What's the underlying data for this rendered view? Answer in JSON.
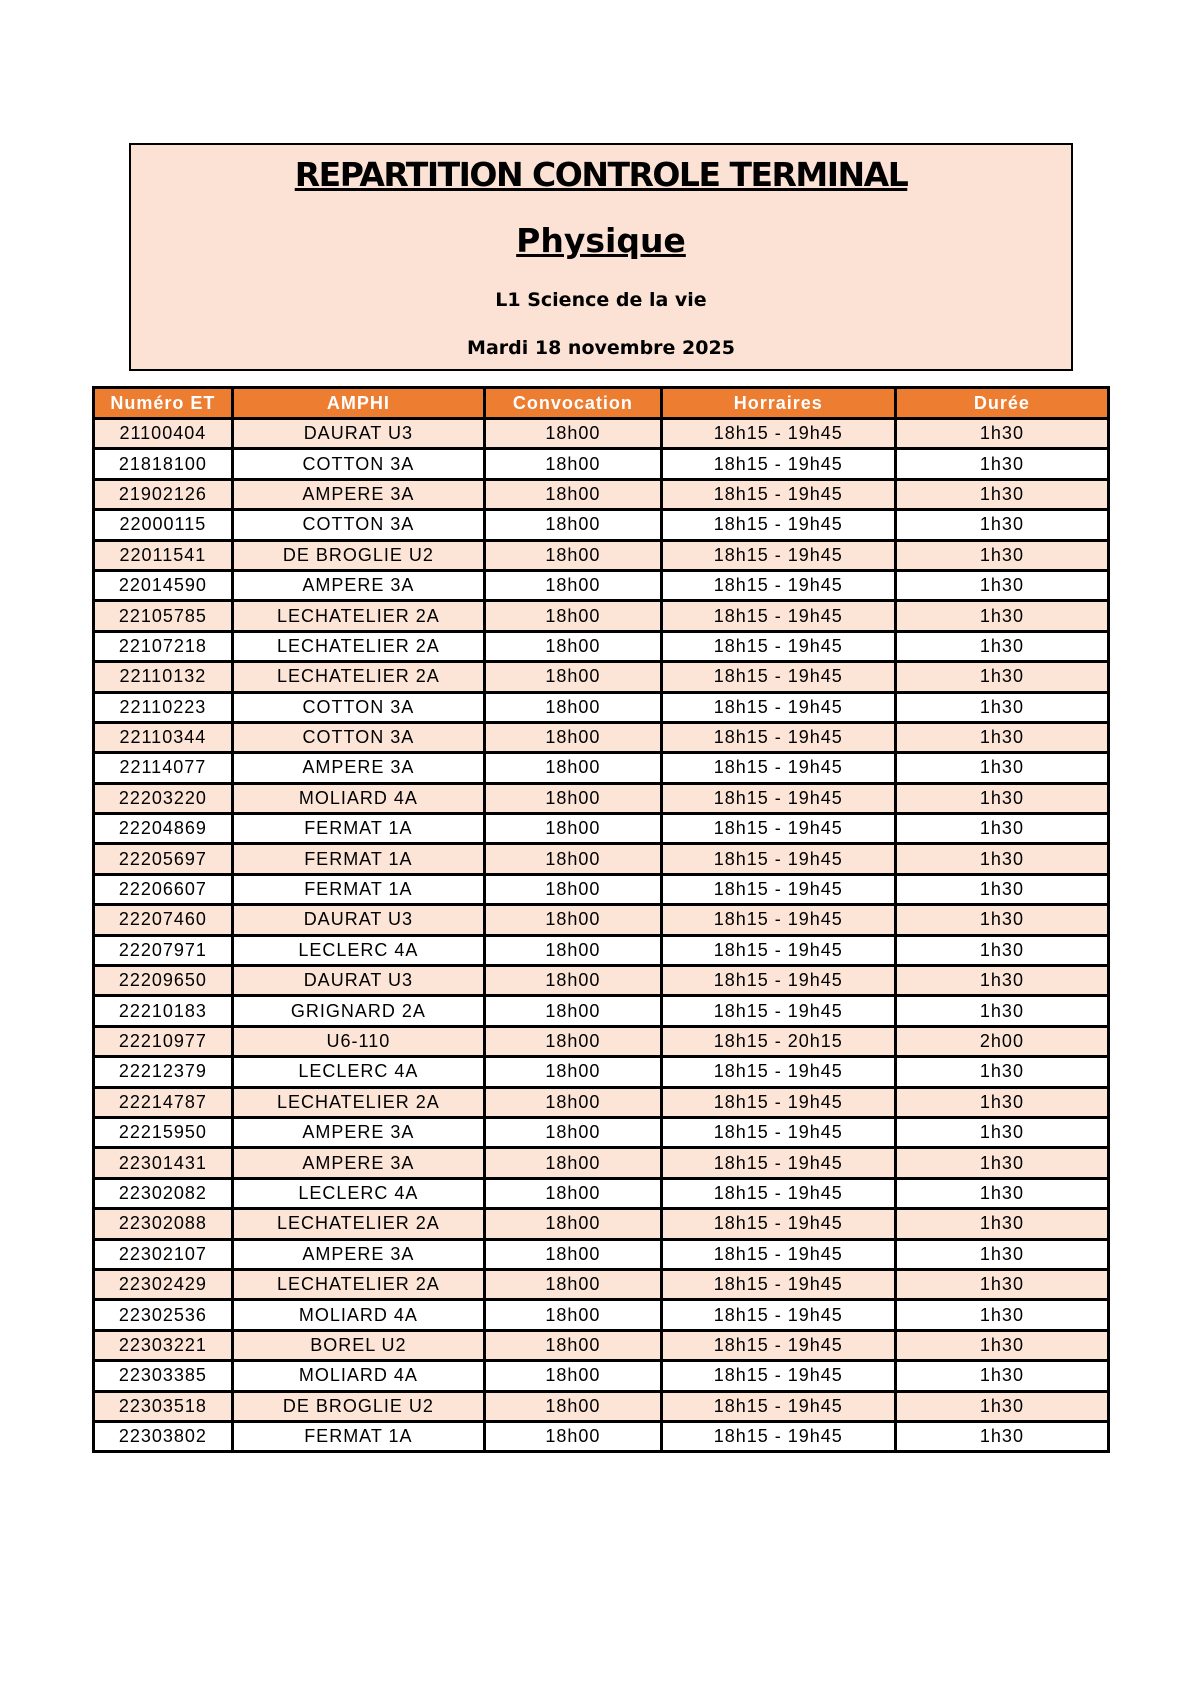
{
  "header": {
    "title": "REPARTITION CONTROLE TERMINAL",
    "subject": "Physique",
    "program": "L1 Science de la vie",
    "date": "Mardi 18 novembre 2025"
  },
  "colors": {
    "header_bg": "#ed7d31",
    "stripe": "#fce4d6",
    "title_box": "#fbe2d5"
  },
  "table": {
    "columns": [
      "Numéro ET",
      "AMPHI",
      "Convocation",
      "Horraires",
      "Durée"
    ],
    "rows": [
      [
        "21100404",
        "DAURAT U3",
        "18h00",
        "18h15 - 19h45",
        "1h30"
      ],
      [
        "21818100",
        "COTTON 3A",
        "18h00",
        "18h15 - 19h45",
        "1h30"
      ],
      [
        "21902126",
        "AMPERE 3A",
        "18h00",
        "18h15 - 19h45",
        "1h30"
      ],
      [
        "22000115",
        "COTTON 3A",
        "18h00",
        "18h15 - 19h45",
        "1h30"
      ],
      [
        "22011541",
        "DE BROGLIE U2",
        "18h00",
        "18h15 - 19h45",
        "1h30"
      ],
      [
        "22014590",
        "AMPERE 3A",
        "18h00",
        "18h15 - 19h45",
        "1h30"
      ],
      [
        "22105785",
        "LECHATELIER 2A",
        "18h00",
        "18h15 - 19h45",
        "1h30"
      ],
      [
        "22107218",
        "LECHATELIER 2A",
        "18h00",
        "18h15 - 19h45",
        "1h30"
      ],
      [
        "22110132",
        "LECHATELIER 2A",
        "18h00",
        "18h15 - 19h45",
        "1h30"
      ],
      [
        "22110223",
        "COTTON 3A",
        "18h00",
        "18h15 - 19h45",
        "1h30"
      ],
      [
        "22110344",
        "COTTON 3A",
        "18h00",
        "18h15 - 19h45",
        "1h30"
      ],
      [
        "22114077",
        "AMPERE 3A",
        "18h00",
        "18h15 - 19h45",
        "1h30"
      ],
      [
        "22203220",
        "MOLIARD 4A",
        "18h00",
        "18h15 - 19h45",
        "1h30"
      ],
      [
        "22204869",
        "FERMAT 1A",
        "18h00",
        "18h15 - 19h45",
        "1h30"
      ],
      [
        "22205697",
        "FERMAT 1A",
        "18h00",
        "18h15 - 19h45",
        "1h30"
      ],
      [
        "22206607",
        "FERMAT 1A",
        "18h00",
        "18h15 - 19h45",
        "1h30"
      ],
      [
        "22207460",
        "DAURAT U3",
        "18h00",
        "18h15 - 19h45",
        "1h30"
      ],
      [
        "22207971",
        "LECLERC 4A",
        "18h00",
        "18h15 - 19h45",
        "1h30"
      ],
      [
        "22209650",
        "DAURAT U3",
        "18h00",
        "18h15 - 19h45",
        "1h30"
      ],
      [
        "22210183",
        "GRIGNARD 2A",
        "18h00",
        "18h15 - 19h45",
        "1h30"
      ],
      [
        "22210977",
        "U6-110",
        "18h00",
        "18h15 - 20h15",
        "2h00"
      ],
      [
        "22212379",
        "LECLERC 4A",
        "18h00",
        "18h15 - 19h45",
        "1h30"
      ],
      [
        "22214787",
        "LECHATELIER 2A",
        "18h00",
        "18h15 - 19h45",
        "1h30"
      ],
      [
        "22215950",
        "AMPERE 3A",
        "18h00",
        "18h15 - 19h45",
        "1h30"
      ],
      [
        "22301431",
        "AMPERE 3A",
        "18h00",
        "18h15 - 19h45",
        "1h30"
      ],
      [
        "22302082",
        "LECLERC 4A",
        "18h00",
        "18h15 - 19h45",
        "1h30"
      ],
      [
        "22302088",
        "LECHATELIER 2A",
        "18h00",
        "18h15 - 19h45",
        "1h30"
      ],
      [
        "22302107",
        "AMPERE 3A",
        "18h00",
        "18h15 - 19h45",
        "1h30"
      ],
      [
        "22302429",
        "LECHATELIER 2A",
        "18h00",
        "18h15 - 19h45",
        "1h30"
      ],
      [
        "22302536",
        "MOLIARD 4A",
        "18h00",
        "18h15 - 19h45",
        "1h30"
      ],
      [
        "22303221",
        "BOREL U2",
        "18h00",
        "18h15 - 19h45",
        "1h30"
      ],
      [
        "22303385",
        "MOLIARD 4A",
        "18h00",
        "18h15 - 19h45",
        "1h30"
      ],
      [
        "22303518",
        "DE BROGLIE U2",
        "18h00",
        "18h15 - 19h45",
        "1h30"
      ],
      [
        "22303802",
        "FERMAT 1A",
        "18h00",
        "18h15 - 19h45",
        "1h30"
      ]
    ]
  }
}
